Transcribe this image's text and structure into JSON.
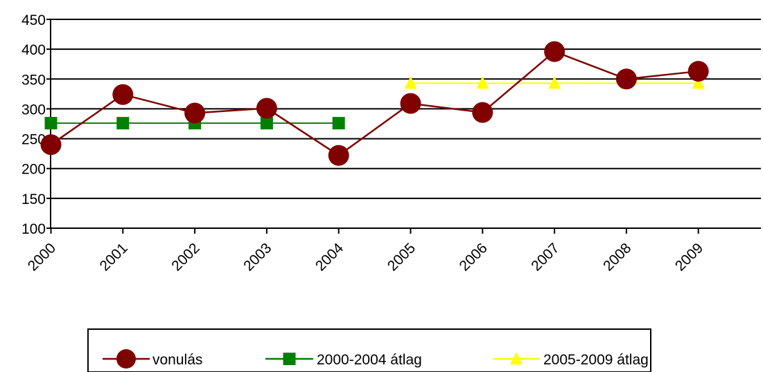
{
  "chart_data": {
    "type": "line",
    "categories": [
      "2000",
      "2001",
      "2002",
      "2003",
      "2004",
      "2005",
      "2006",
      "2007",
      "2008",
      "2009"
    ],
    "ylim": [
      100,
      450
    ],
    "yticks": [
      100,
      150,
      200,
      250,
      300,
      350,
      400,
      450
    ],
    "ytick_labels": [
      "100",
      "150",
      "200",
      "250",
      "300",
      "350",
      "400",
      "450"
    ],
    "grid": "horizontal",
    "legend_position": "bottom",
    "series": [
      {
        "name": "vonulás",
        "color": "#800000",
        "marker": "circle",
        "values": [
          240,
          324,
          293,
          301,
          222,
          309,
          294,
          396,
          350,
          363
        ]
      },
      {
        "name": "2000-2004 átlag",
        "color": "#008000",
        "marker": "square",
        "values": [
          276,
          276,
          276,
          276,
          276,
          null,
          null,
          null,
          null,
          null
        ]
      },
      {
        "name": "2005-2009 átlag",
        "color": "#FFFF00",
        "marker": "triangle",
        "values": [
          null,
          null,
          null,
          null,
          null,
          343,
          343,
          343,
          343,
          343
        ]
      }
    ]
  }
}
